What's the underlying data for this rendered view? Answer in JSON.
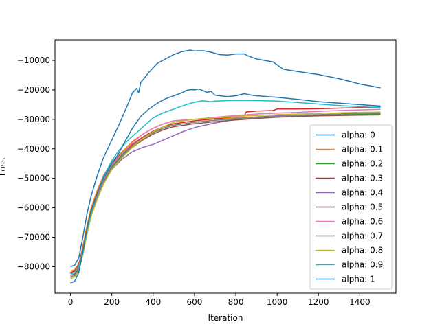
{
  "chart_data": {
    "type": "line",
    "title": "",
    "xlabel": "Iteration",
    "ylabel": "Loss",
    "xlim": [
      -75,
      1575
    ],
    "ylim": [
      -89000,
      -3000
    ],
    "xticks": [
      0,
      200,
      400,
      600,
      800,
      1000,
      1200,
      1400
    ],
    "yticks": [
      -80000,
      -70000,
      -60000,
      -50000,
      -40000,
      -30000,
      -20000,
      -10000
    ],
    "grid": false,
    "legend_position": "lower right",
    "series": [
      {
        "name": "alpha: 0",
        "color": "#1f77b4",
        "x": [
          0,
          20,
          40,
          60,
          80,
          100,
          130,
          160,
          200,
          240,
          280,
          300,
          320,
          330,
          340,
          380,
          420,
          460,
          500,
          540,
          580,
          600,
          640,
          680,
          720,
          760,
          800,
          840,
          860,
          900,
          980,
          1020,
          1030,
          1100,
          1200,
          1300,
          1400,
          1500
        ],
        "y": [
          -80000,
          -79500,
          -77000,
          -70000,
          -62000,
          -56000,
          -49000,
          -43000,
          -37000,
          -31000,
          -24500,
          -21000,
          -19500,
          -21000,
          -17500,
          -14000,
          -11000,
          -9500,
          -8000,
          -7000,
          -6500,
          -6800,
          -6700,
          -7200,
          -8000,
          -8200,
          -7800,
          -7800,
          -8500,
          -9500,
          -10500,
          -12500,
          -13000,
          -13800,
          -14800,
          -16200,
          -18000,
          -19300
        ]
      },
      {
        "name": "alpha: 0.1",
        "color": "#ff7f0e",
        "x": [
          0,
          20,
          40,
          60,
          80,
          100,
          130,
          160,
          200,
          250,
          300,
          350,
          400,
          450,
          500,
          600,
          700,
          800,
          900,
          1000,
          1100,
          1200,
          1300,
          1400,
          1500
        ],
        "y": [
          -81500,
          -81000,
          -79000,
          -73000,
          -66000,
          -60000,
          -54000,
          -49000,
          -44500,
          -41000,
          -37500,
          -35000,
          -33000,
          -31500,
          -30500,
          -30000,
          -29800,
          -29500,
          -29200,
          -28900,
          -28700,
          -28500,
          -28300,
          -28200,
          -28000
        ]
      },
      {
        "name": "alpha: 0.2",
        "color": "#2ca02c",
        "x": [
          0,
          20,
          40,
          60,
          80,
          100,
          130,
          160,
          200,
          250,
          300,
          350,
          400,
          450,
          500,
          600,
          700,
          800,
          900,
          1000,
          1100,
          1200,
          1300,
          1400,
          1500
        ],
        "y": [
          -83000,
          -82500,
          -80500,
          -75000,
          -68000,
          -62000,
          -56000,
          -51000,
          -46000,
          -42000,
          -39000,
          -36500,
          -34500,
          -33000,
          -32000,
          -31000,
          -30300,
          -29800,
          -29400,
          -29000,
          -28800,
          -28600,
          -28400,
          -28300,
          -28200
        ]
      },
      {
        "name": "alpha: 0.3",
        "color": "#d62728",
        "x": [
          0,
          20,
          40,
          60,
          80,
          100,
          130,
          160,
          200,
          250,
          300,
          350,
          400,
          450,
          500,
          600,
          700,
          800,
          840,
          850,
          900,
          980,
          1000,
          1100,
          1200,
          1300,
          1400,
          1500
        ],
        "y": [
          -82000,
          -81500,
          -79500,
          -74000,
          -67000,
          -61000,
          -55000,
          -50000,
          -45000,
          -41500,
          -38500,
          -36000,
          -34000,
          -32500,
          -31500,
          -30500,
          -29800,
          -29000,
          -28800,
          -27500,
          -27200,
          -27000,
          -26500,
          -26500,
          -26400,
          -26200,
          -26000,
          -25800
        ]
      },
      {
        "name": "alpha: 0.4",
        "color": "#9467bd",
        "x": [
          0,
          20,
          40,
          60,
          80,
          100,
          130,
          160,
          200,
          250,
          300,
          350,
          400,
          450,
          500,
          550,
          600,
          700,
          800,
          900,
          1000,
          1100,
          1200,
          1300,
          1400,
          1500
        ],
        "y": [
          -83500,
          -83000,
          -81000,
          -75500,
          -68500,
          -62500,
          -56500,
          -51500,
          -47000,
          -43500,
          -41000,
          -39500,
          -38500,
          -37000,
          -35500,
          -34000,
          -32800,
          -31200,
          -30000,
          -29200,
          -28800,
          -28600,
          -28400,
          -28200,
          -28000,
          -27800
        ]
      },
      {
        "name": "alpha: 0.5",
        "color": "#8c564b",
        "x": [
          0,
          20,
          40,
          60,
          80,
          100,
          130,
          160,
          200,
          250,
          300,
          350,
          400,
          450,
          500,
          600,
          700,
          800,
          900,
          1000,
          1100,
          1200,
          1300,
          1400,
          1500
        ],
        "y": [
          -83000,
          -82500,
          -80500,
          -75000,
          -68000,
          -62000,
          -56000,
          -51000,
          -46500,
          -42500,
          -39500,
          -37000,
          -35000,
          -33500,
          -32500,
          -31500,
          -30800,
          -30200,
          -29700,
          -29300,
          -29000,
          -28800,
          -28700,
          -28600,
          -28500
        ]
      },
      {
        "name": "alpha: 0.6",
        "color": "#e377c2",
        "x": [
          0,
          20,
          40,
          60,
          80,
          100,
          130,
          160,
          200,
          250,
          300,
          350,
          400,
          450,
          500,
          600,
          700,
          800,
          900,
          1000,
          1100,
          1200,
          1300,
          1400,
          1500
        ],
        "y": [
          -82500,
          -82000,
          -80000,
          -74500,
          -67500,
          -61500,
          -55500,
          -50500,
          -45500,
          -41500,
          -38000,
          -35000,
          -33000,
          -31500,
          -30500,
          -30000,
          -29300,
          -28700,
          -28200,
          -27900,
          -27600,
          -27300,
          -27000,
          -26800,
          -26600
        ]
      },
      {
        "name": "alpha: 0.7",
        "color": "#7f7f7f",
        "x": [
          0,
          20,
          40,
          60,
          80,
          100,
          130,
          160,
          200,
          250,
          300,
          350,
          400,
          450,
          500,
          600,
          700,
          800,
          900,
          1000,
          1100,
          1200,
          1300,
          1400,
          1500
        ],
        "y": [
          -83500,
          -83000,
          -81000,
          -75500,
          -68500,
          -62500,
          -56500,
          -51500,
          -46500,
          -42500,
          -39000,
          -36500,
          -34500,
          -33000,
          -32000,
          -31000,
          -30300,
          -29800,
          -29400,
          -29000,
          -28700,
          -28400,
          -28200,
          -28000,
          -27800
        ]
      },
      {
        "name": "alpha: 0.8",
        "color": "#bcbd22",
        "x": [
          0,
          20,
          40,
          60,
          80,
          100,
          130,
          160,
          200,
          250,
          300,
          350,
          400,
          450,
          500,
          600,
          700,
          800,
          900,
          1000,
          1100,
          1200,
          1300,
          1400,
          1500
        ],
        "y": [
          -84000,
          -83500,
          -81500,
          -76000,
          -69000,
          -63000,
          -57000,
          -52000,
          -47000,
          -43000,
          -39500,
          -36500,
          -34200,
          -32500,
          -31000,
          -30000,
          -29500,
          -29000,
          -28700,
          -28400,
          -28200,
          -28000,
          -27800,
          -27600,
          -27500
        ]
      },
      {
        "name": "alpha: 0.9",
        "color": "#17becf",
        "x": [
          0,
          20,
          40,
          60,
          80,
          100,
          130,
          160,
          200,
          240,
          280,
          320,
          360,
          400,
          440,
          500,
          560,
          600,
          640,
          680,
          700,
          800,
          900,
          1000,
          1100,
          1200,
          1300,
          1400,
          1500
        ],
        "y": [
          -82500,
          -82000,
          -80000,
          -74500,
          -67500,
          -61500,
          -55000,
          -49500,
          -44000,
          -40000,
          -37000,
          -34500,
          -32000,
          -29500,
          -28000,
          -26500,
          -25000,
          -24200,
          -23700,
          -24000,
          -23800,
          -23500,
          -23600,
          -23800,
          -24300,
          -24800,
          -25300,
          -25700,
          -26000
        ]
      },
      {
        "name": "alpha: 1",
        "color": "#1f77b4",
        "x": [
          0,
          20,
          40,
          60,
          80,
          100,
          130,
          160,
          200,
          230,
          260,
          300,
          340,
          380,
          420,
          460,
          500,
          540,
          560,
          580,
          600,
          620,
          640,
          660,
          680,
          700,
          760,
          800,
          840,
          880,
          900,
          1000,
          1100,
          1200,
          1300,
          1400,
          1500
        ],
        "y": [
          -85500,
          -85000,
          -82000,
          -75000,
          -67000,
          -61000,
          -55000,
          -50000,
          -45000,
          -42000,
          -38000,
          -33000,
          -29000,
          -26500,
          -24500,
          -23000,
          -22000,
          -21000,
          -20200,
          -19900,
          -20000,
          -19700,
          -20200,
          -20800,
          -20500,
          -21800,
          -22300,
          -22000,
          -21300,
          -21800,
          -22000,
          -22500,
          -23200,
          -24000,
          -24500,
          -25000,
          -25500
        ]
      }
    ]
  }
}
